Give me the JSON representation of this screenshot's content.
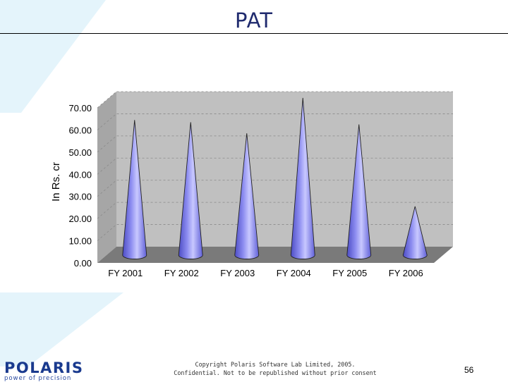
{
  "title": "PAT",
  "footer": {
    "line1": "Copyright Polaris Software Lab Limited, 2005.",
    "line2": "Confidential. Not to be republished without prior consent"
  },
  "page_number": "56",
  "logo": {
    "word": "POLARIS",
    "tagline": "power of precision"
  },
  "colors": {
    "title": "#1f2a6e",
    "cone": "#8c8cf0",
    "wall": "#c0c0c0",
    "floor": "#7a7a7a",
    "deco": "#e4f4fb",
    "logo": "#1a3a8e"
  },
  "chart_data": {
    "type": "bar",
    "bar_shape": "cone",
    "categories": [
      "FY 2001",
      "FY 2002",
      "FY 2003",
      "FY 2004",
      "FY 2005",
      "FY 2006"
    ],
    "values": [
      61,
      60,
      55,
      71,
      59,
      22
    ],
    "title": "",
    "xlabel": "",
    "ylabel": "In Rs. cr",
    "ylim": [
      0,
      70
    ],
    "yticks": [
      "0.00",
      "10.00",
      "20.00",
      "30.00",
      "40.00",
      "50.00",
      "60.00",
      "70.00"
    ],
    "grid": true
  }
}
